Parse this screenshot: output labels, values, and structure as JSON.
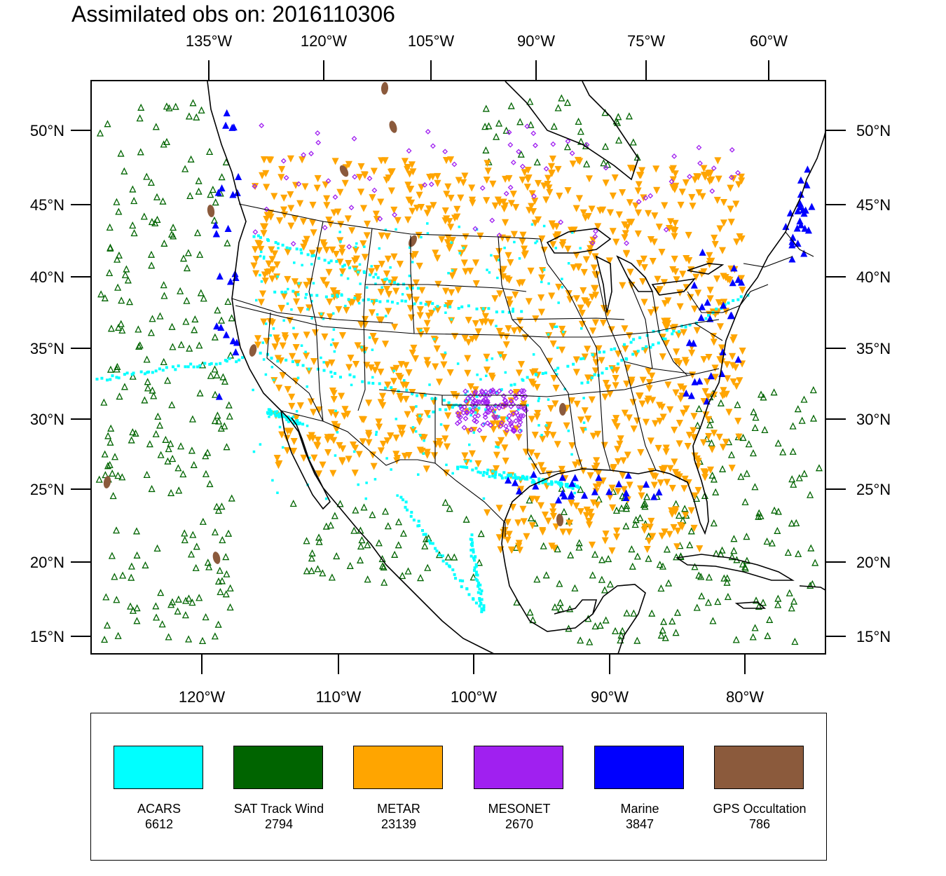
{
  "title": "Assimilated obs on: 2016110306",
  "top_axis": [
    "135°W",
    "120°W",
    "105°W",
    "90°W",
    "75°W",
    "60°W"
  ],
  "bottom_axis": [
    "120°W",
    "110°W",
    "100°W",
    "90°W",
    "80°W"
  ],
  "left_axis": [
    "50°N",
    "45°N",
    "40°N",
    "35°N",
    "30°N",
    "25°N",
    "20°N",
    "15°N"
  ],
  "right_axis": [
    "50°N",
    "45°N",
    "40°N",
    "35°N",
    "30°N",
    "25°N",
    "20°N",
    "15°N"
  ],
  "legend": [
    {
      "name": "ACARS",
      "count": "6612",
      "color": "#00ffff"
    },
    {
      "name": "SAT Track Wind",
      "count": "2794",
      "color": "#006400"
    },
    {
      "name": "METAR",
      "count": "23139",
      "color": "#ffa500"
    },
    {
      "name": "MESONET",
      "count": "2670",
      "color": "#a020f0"
    },
    {
      "name": "Marine",
      "count": "3847",
      "color": "#0000ff"
    },
    {
      "name": "GPS Occultation",
      "count": "786",
      "color": "#8b5a3c"
    }
  ]
}
